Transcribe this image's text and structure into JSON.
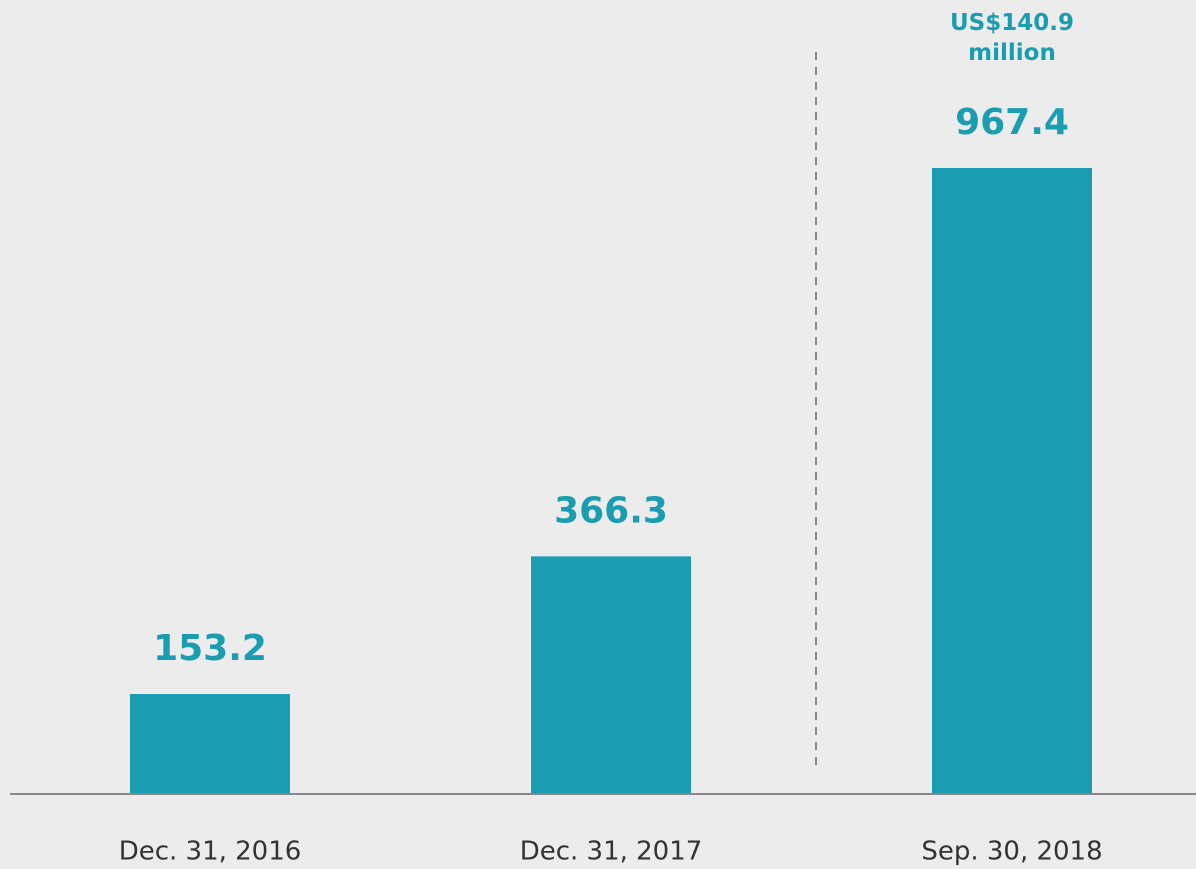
{
  "chart_data": {
    "type": "bar",
    "categories": [
      "Dec. 31, 2016",
      "Dec. 31, 2017",
      "Sep. 30, 2018"
    ],
    "values": [
      153.2,
      366.3,
      967.4
    ],
    "color": "#1a9db0",
    "annotation": "US$140.9 million"
  }
}
